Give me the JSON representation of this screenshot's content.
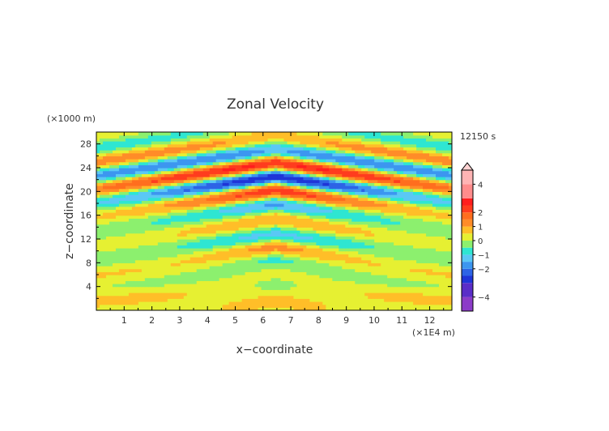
{
  "chart_data": {
    "type": "heatmap",
    "title": "Zonal Velocity",
    "xlabel": "x−coordinate",
    "ylabel": "z−coordinate",
    "x_unit": "(×1E4 m)",
    "y_unit": "(×1000 m)",
    "time_label": "12150 s",
    "xlim": [
      0,
      12.8
    ],
    "ylim": [
      0,
      30
    ],
    "x_ticks": [
      1,
      2,
      3,
      4,
      5,
      6,
      7,
      8,
      9,
      10,
      11,
      12
    ],
    "y_ticks": [
      4,
      8,
      12,
      16,
      20,
      24,
      28
    ],
    "colorbar": {
      "ticks": [
        4,
        2,
        1,
        0,
        -1,
        -2,
        -4
      ],
      "tick_labels": [
        "4",
        "2",
        "1",
        "0",
        "−1",
        "−2",
        "−4"
      ],
      "levels": [
        -5,
        -4,
        -3,
        -2.5,
        -2,
        -1.5,
        -1,
        -0.5,
        0,
        0.5,
        1,
        1.5,
        2,
        2.5,
        3,
        4,
        5
      ],
      "colors": [
        "#8c3cc8",
        "#5a2dc8",
        "#1f35d8",
        "#2d64e6",
        "#3c96f0",
        "#5ac8f5",
        "#2ee6d2",
        "#8cf06e",
        "#e6f032",
        "#ffbe28",
        "#ff8c28",
        "#ff6e1e",
        "#ff3c1e",
        "#ff1e1e",
        "#ff8c8c",
        "#ffb4b4"
      ]
    }
  }
}
